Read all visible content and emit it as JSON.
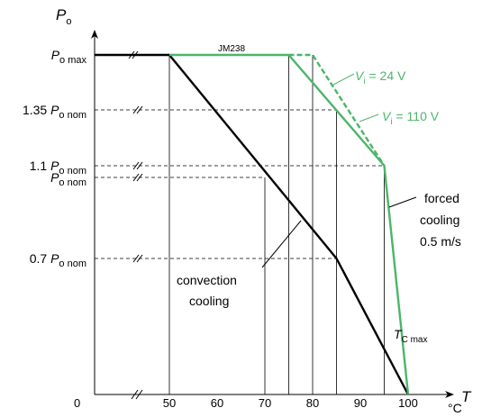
{
  "chart_data": {
    "type": "line",
    "watermark": "JM238",
    "y_axis": {
      "symbol": "P",
      "subscript": "o",
      "ticks": [
        {
          "main": "P",
          "sub": "o max",
          "pre": ""
        },
        {
          "main": "P",
          "sub": "o nom",
          "pre": "1.35 "
        },
        {
          "main": "P",
          "sub": "o nom",
          "pre": "1.1 "
        },
        {
          "main": "P",
          "sub": "o nom",
          "pre": ""
        },
        {
          "main": "P",
          "sub": "o nom",
          "pre": "0.7 "
        },
        {
          "main": "",
          "sub": "",
          "pre": "0"
        }
      ]
    },
    "x_axis": {
      "symbol": "T",
      "unit": "°C",
      "ticks": [
        "50",
        "60",
        "70",
        "80",
        "90",
        "100"
      ]
    },
    "annotations": {
      "convection_line1": "convection",
      "convection_line2": "cooling",
      "forced_line1": "forced",
      "forced_line2": "cooling",
      "forced_line3": "0.5 m/s",
      "v24_main": "V",
      "v24_sub": "i",
      "v24_rest": " = 24 V",
      "v110_main": "V",
      "v110_sub": "i",
      "v110_rest": " = 110 V",
      "tc_main": "T",
      "tc_sub": "C max"
    },
    "colors": {
      "convection": "#000000",
      "forced": "#4cb56a",
      "grid": "#000000"
    },
    "series": [
      {
        "cooling": "convection",
        "points": [
          [
            30,
            1.55
          ],
          [
            50,
            1.55
          ],
          [
            85,
            0.7
          ],
          [
            100,
            0
          ]
        ]
      },
      {
        "cooling": "forced",
        "vi": "24 V",
        "points": [
          [
            50,
            1.55
          ],
          [
            75,
            1.55
          ],
          [
            95,
            1.1
          ],
          [
            100,
            0
          ]
        ]
      },
      {
        "cooling": "forced",
        "vi": "110 V",
        "points": [
          [
            75,
            1.55
          ],
          [
            80,
            1.55
          ],
          [
            95,
            1.1
          ]
        ]
      }
    ]
  }
}
